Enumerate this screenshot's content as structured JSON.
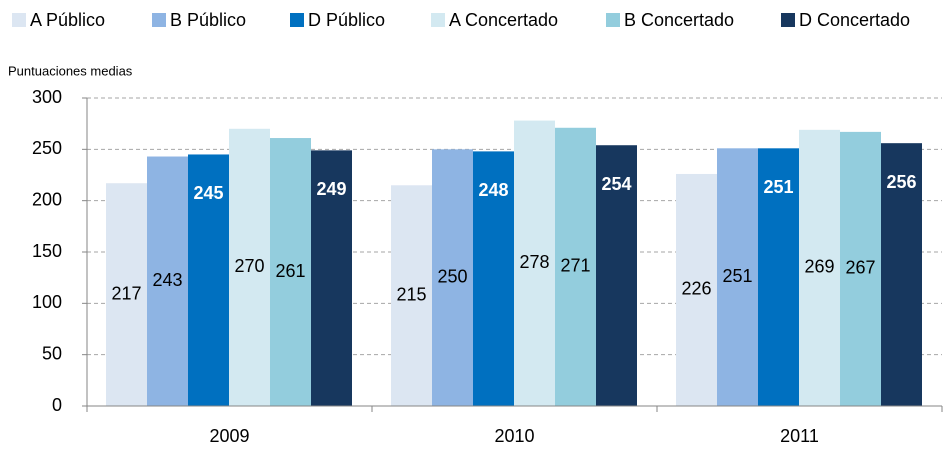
{
  "chart_data": {
    "type": "bar",
    "y_axis_label": "Puntuaciones medias",
    "categories": [
      "2009",
      "2010",
      "2011"
    ],
    "series": [
      {
        "name": "A Público",
        "color": "#dce6f2",
        "values": [
          217,
          215,
          226
        ]
      },
      {
        "name": "B Público",
        "color": "#8eb4e3",
        "values": [
          243,
          250,
          251
        ]
      },
      {
        "name": "D Público",
        "color": "#0070c0",
        "values": [
          245,
          248,
          251
        ]
      },
      {
        "name": "A Concertado",
        "color": "#d3e9f1",
        "values": [
          270,
          278,
          269
        ]
      },
      {
        "name": "B Concertado",
        "color": "#93cddd",
        "values": [
          261,
          271,
          267
        ]
      },
      {
        "name": "D Concertado",
        "color": "#17375e",
        "values": [
          249,
          254,
          256
        ]
      }
    ],
    "ylim": [
      0,
      300
    ],
    "yticks": [
      0,
      50,
      100,
      150,
      200,
      250,
      300
    ],
    "grid": true,
    "legend": "top"
  }
}
